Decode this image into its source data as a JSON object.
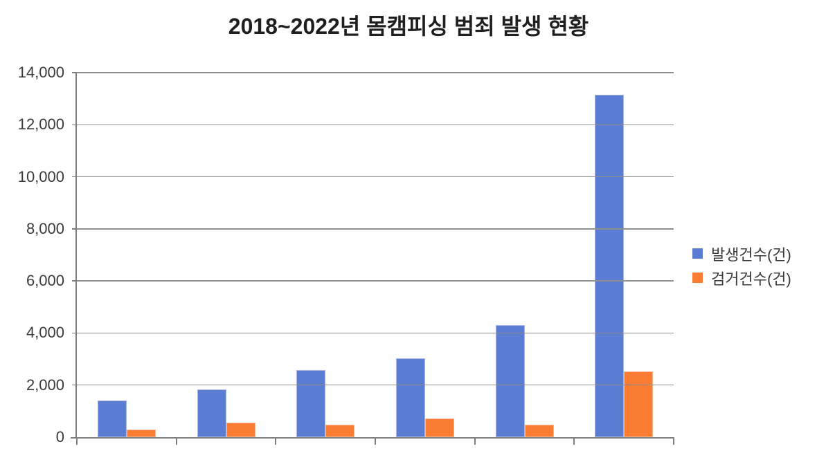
{
  "title": "2018~2022년 몸캠피싱 범죄 발생 현황",
  "legend": {
    "items": [
      {
        "key": "occurrences",
        "label": "발생건수(건)",
        "color": "#5B7CD3"
      },
      {
        "key": "arrests",
        "label": "검거건수(건)",
        "color": "#FB7D33"
      }
    ]
  },
  "colors": {
    "series_blue": "#5B7CD3",
    "series_orange": "#FB7D33",
    "gridline": "#8F8F8F",
    "axis": "#7F7F7F",
    "tick_text": "#3A3A3A",
    "title_text": "#1F1F1F",
    "background": "#FFFFFF"
  },
  "chart_data": {
    "type": "bar",
    "title": "2018~2022년 몸캠피싱 범죄 발생 현황",
    "categories": [
      "",
      "",
      "",
      "",
      "",
      ""
    ],
    "series": [
      {
        "key": "occurrences",
        "name": "발생건수(건)",
        "color": "#5B7CD3",
        "values": [
          1406,
          1824,
          2583,
          3026,
          4312,
          13151
        ]
      },
      {
        "key": "arrests",
        "name": "검거건수(건)",
        "color": "#FB7D33",
        "values": [
          301,
          545,
          486,
          724,
          479,
          2535
        ]
      }
    ],
    "xlabel": "",
    "ylabel": "",
    "ylim": [
      0,
      14000
    ],
    "ytick_step": 2000,
    "yticklabels": [
      "0",
      "2,000",
      "4,000",
      "6,000",
      "8,000",
      "10,000",
      "12,000",
      "14,000"
    ],
    "grid": true,
    "legend_position": "right",
    "x_axis_labels_visible": false
  }
}
